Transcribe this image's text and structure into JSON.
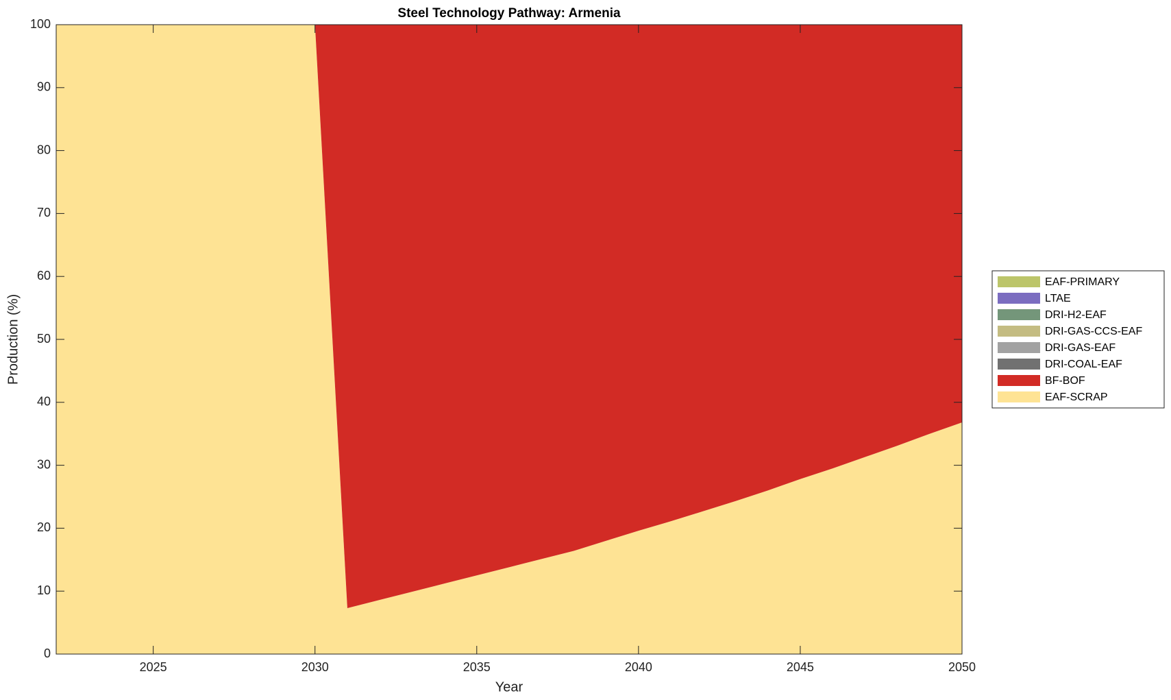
{
  "chart_data": {
    "type": "stacked-area",
    "title": "Steel Technology Pathway: Armenia",
    "x_label": "Year",
    "y_label": "Production (%)",
    "x": [
      2022,
      2023,
      2024,
      2025,
      2026,
      2027,
      2028,
      2029,
      2030,
      2031,
      2032,
      2033,
      2034,
      2035,
      2036,
      2037,
      2038,
      2039,
      2040,
      2041,
      2042,
      2043,
      2044,
      2045,
      2046,
      2047,
      2048,
      2049,
      2050
    ],
    "series": [
      {
        "name": "EAF-SCRAP",
        "color": "#fee394",
        "values": [
          100,
          100,
          100,
          100,
          100,
          100,
          100,
          100,
          100,
          7.3,
          8.6,
          9.9,
          11.2,
          12.5,
          13.8,
          15.1,
          16.4,
          18.0,
          19.6,
          21.1,
          22.7,
          24.3,
          26.0,
          27.8,
          29.5,
          31.3,
          33.1,
          35.0,
          36.8
        ]
      },
      {
        "name": "BF-BOF",
        "color": "#d22b25",
        "values": [
          0,
          0,
          0,
          0,
          0,
          0,
          0,
          0,
          0,
          92.7,
          91.4,
          90.1,
          88.8,
          87.5,
          86.2,
          84.9,
          83.6,
          82.0,
          80.4,
          78.9,
          77.3,
          75.7,
          74.0,
          72.2,
          70.5,
          68.7,
          66.9,
          65.0,
          63.2
        ]
      },
      {
        "name": "DRI-COAL-EAF",
        "color": "#717171",
        "values": [
          0,
          0,
          0,
          0,
          0,
          0,
          0,
          0,
          0,
          0,
          0,
          0,
          0,
          0,
          0,
          0,
          0,
          0,
          0,
          0,
          0,
          0,
          0,
          0,
          0,
          0,
          0,
          0,
          0
        ]
      },
      {
        "name": "DRI-GAS-EAF",
        "color": "#a2a2a2",
        "values": [
          0,
          0,
          0,
          0,
          0,
          0,
          0,
          0,
          0,
          0,
          0,
          0,
          0,
          0,
          0,
          0,
          0,
          0,
          0,
          0,
          0,
          0,
          0,
          0,
          0,
          0,
          0,
          0,
          0
        ]
      },
      {
        "name": "DRI-GAS-CCS-EAF",
        "color": "#c4bc82",
        "values": [
          0,
          0,
          0,
          0,
          0,
          0,
          0,
          0,
          0,
          0,
          0,
          0,
          0,
          0,
          0,
          0,
          0,
          0,
          0,
          0,
          0,
          0,
          0,
          0,
          0,
          0,
          0,
          0,
          0
        ]
      },
      {
        "name": "DRI-H2-EAF",
        "color": "#74967a",
        "values": [
          0,
          0,
          0,
          0,
          0,
          0,
          0,
          0,
          0,
          0,
          0,
          0,
          0,
          0,
          0,
          0,
          0,
          0,
          0,
          0,
          0,
          0,
          0,
          0,
          0,
          0,
          0,
          0,
          0
        ]
      },
      {
        "name": "LTAE",
        "color": "#7b6dc0",
        "values": [
          0,
          0,
          0,
          0,
          0,
          0,
          0,
          0,
          0,
          0,
          0,
          0,
          0,
          0,
          0,
          0,
          0,
          0,
          0,
          0,
          0,
          0,
          0,
          0,
          0,
          0,
          0,
          0,
          0
        ]
      },
      {
        "name": "EAF-PRIMARY",
        "color": "#bcc56a",
        "values": [
          0,
          0,
          0,
          0,
          0,
          0,
          0,
          0,
          0,
          0,
          0,
          0,
          0,
          0,
          0,
          0,
          0,
          0,
          0,
          0,
          0,
          0,
          0,
          0,
          0,
          0,
          0,
          0,
          0
        ]
      }
    ],
    "xlim": [
      2022,
      2050
    ],
    "xticks": [
      2025,
      2030,
      2035,
      2040,
      2045,
      2050
    ],
    "ylim": [
      0,
      100
    ],
    "yticks": [
      0,
      10,
      20,
      30,
      40,
      50,
      60,
      70,
      80,
      90,
      100
    ],
    "grid": false,
    "legend": "outside-right"
  }
}
